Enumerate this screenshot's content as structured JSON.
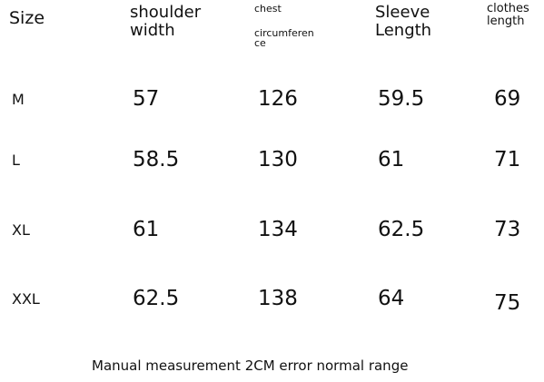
{
  "table": {
    "columns": [
      [
        "Size"
      ],
      [
        "shoulder",
        "width"
      ],
      [
        "chest",
        "circumferen",
        "ce"
      ],
      [
        "Sleeve",
        "Length"
      ],
      [
        "clothes",
        "length"
      ]
    ],
    "rows": [
      [
        "M",
        57,
        126,
        59.5,
        69
      ],
      [
        "L",
        58.5,
        130,
        61,
        71
      ],
      [
        "XL",
        61,
        134,
        62.5,
        73
      ],
      [
        "XXL",
        62.5,
        138,
        64,
        75
      ]
    ]
  },
  "footnote": "Manual measurement 2CM error normal range"
}
